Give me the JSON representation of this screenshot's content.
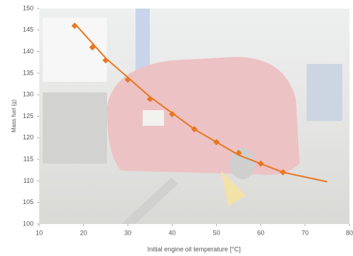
{
  "chart_data": {
    "type": "scatter",
    "x_label": "Initial engine oil temperature [°C]",
    "y_label": "Mass fuel (g)",
    "series": [
      {
        "color": "#e87722",
        "x": [
          18,
          22,
          25,
          30,
          35,
          40,
          45,
          50,
          55,
          60,
          65
        ],
        "values": [
          146,
          141,
          138,
          133.5,
          129,
          125.5,
          122,
          119,
          116.5,
          114,
          112
        ]
      },
      {
        "type": "line",
        "color": "#e87722",
        "x": [
          18,
          25,
          35,
          45,
          55,
          65,
          75
        ],
        "values": [
          146.5,
          138.5,
          129.5,
          122,
          116,
          112,
          109.8
        ]
      }
    ],
    "xlim": [
      10,
      80
    ],
    "xticks": [
      10,
      20,
      30,
      40,
      50,
      60,
      70,
      80
    ],
    "ylim": [
      100,
      150
    ],
    "yticks": [
      100,
      105,
      110,
      115,
      120,
      125,
      130,
      135,
      140,
      145,
      150
    ]
  }
}
